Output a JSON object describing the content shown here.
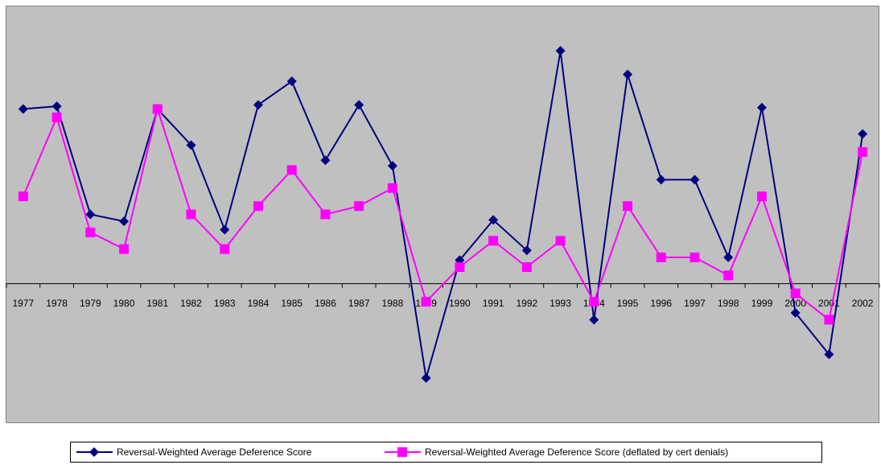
{
  "chart_data": {
    "type": "line",
    "categories": [
      "1977",
      "1978",
      "1979",
      "1980",
      "1981",
      "1982",
      "1983",
      "1984",
      "1985",
      "1986",
      "1987",
      "1988",
      "1989",
      "1990",
      "1991",
      "1992",
      "1993",
      "1994",
      "1995",
      "1996",
      "1997",
      "1998",
      "1999",
      "2000",
      "2001",
      "2002"
    ],
    "series": [
      {
        "name": "Reversal-Weighted Average Deference Score",
        "color": "#000080",
        "marker": "diamond",
        "values": [
          1.26,
          1.28,
          0.5,
          0.45,
          1.26,
          1.0,
          0.39,
          1.29,
          1.46,
          0.89,
          1.29,
          0.85,
          -0.68,
          0.17,
          0.46,
          0.24,
          1.68,
          -0.26,
          1.51,
          0.75,
          0.75,
          0.19,
          1.27,
          -0.21,
          -0.51,
          1.08
        ]
      },
      {
        "name": "Reversal-Weighted Average Deference Score (deflated by cert denials)",
        "color": "#FF00FF",
        "marker": "square",
        "values": [
          0.63,
          1.2,
          0.37,
          0.25,
          1.26,
          0.5,
          0.25,
          0.56,
          0.82,
          0.5,
          0.56,
          0.69,
          -0.13,
          0.12,
          0.31,
          0.12,
          0.31,
          -0.13,
          0.56,
          0.19,
          0.19,
          0.06,
          0.63,
          -0.07,
          -0.26,
          0.95
        ]
      }
    ],
    "ylim": [
      -1,
      2
    ],
    "plot_background": "#C0C0C0",
    "legend": "bottom"
  }
}
